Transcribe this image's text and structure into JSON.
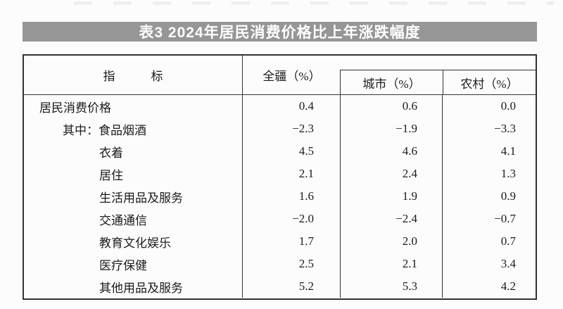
{
  "title": "表3 2024年居民消费价格比上年涨跌幅度",
  "table": {
    "header": {
      "indicator": "指　　　标",
      "region": "全疆（%）",
      "city": "城市（%）",
      "rural": "农村（%）"
    },
    "rows": [
      {
        "indicator": "居民消费价格",
        "region": "0.4",
        "city": "0.6",
        "rural": "0.0",
        "indent": 1
      },
      {
        "indicator": "其中：食品烟酒",
        "region": "−2.3",
        "city": "−1.9",
        "rural": "−3.3",
        "indent": 2
      },
      {
        "indicator": "衣着",
        "region": "4.5",
        "city": "4.6",
        "rural": "4.1",
        "indent": 3
      },
      {
        "indicator": "居住",
        "region": "2.1",
        "city": "2.4",
        "rural": "1.3",
        "indent": 3
      },
      {
        "indicator": "生活用品及服务",
        "region": "1.6",
        "city": "1.9",
        "rural": "0.9",
        "indent": 3
      },
      {
        "indicator": "交通通信",
        "region": "−2.0",
        "city": "−2.4",
        "rural": "−0.7",
        "indent": 3
      },
      {
        "indicator": "教育文化娱乐",
        "region": "1.7",
        "city": "2.0",
        "rural": "0.7",
        "indent": 3
      },
      {
        "indicator": "医疗保健",
        "region": "2.5",
        "city": "2.1",
        "rural": "3.4",
        "indent": 3
      },
      {
        "indicator": "其他用品及服务",
        "region": "5.2",
        "city": "5.3",
        "rural": "4.2",
        "indent": 3
      }
    ]
  },
  "colors": {
    "title_bar_bg": "#969696",
    "title_text": "#ffffff",
    "border": "#333333",
    "text": "#1b1b1b",
    "page_bg": "#fcfcfc"
  }
}
